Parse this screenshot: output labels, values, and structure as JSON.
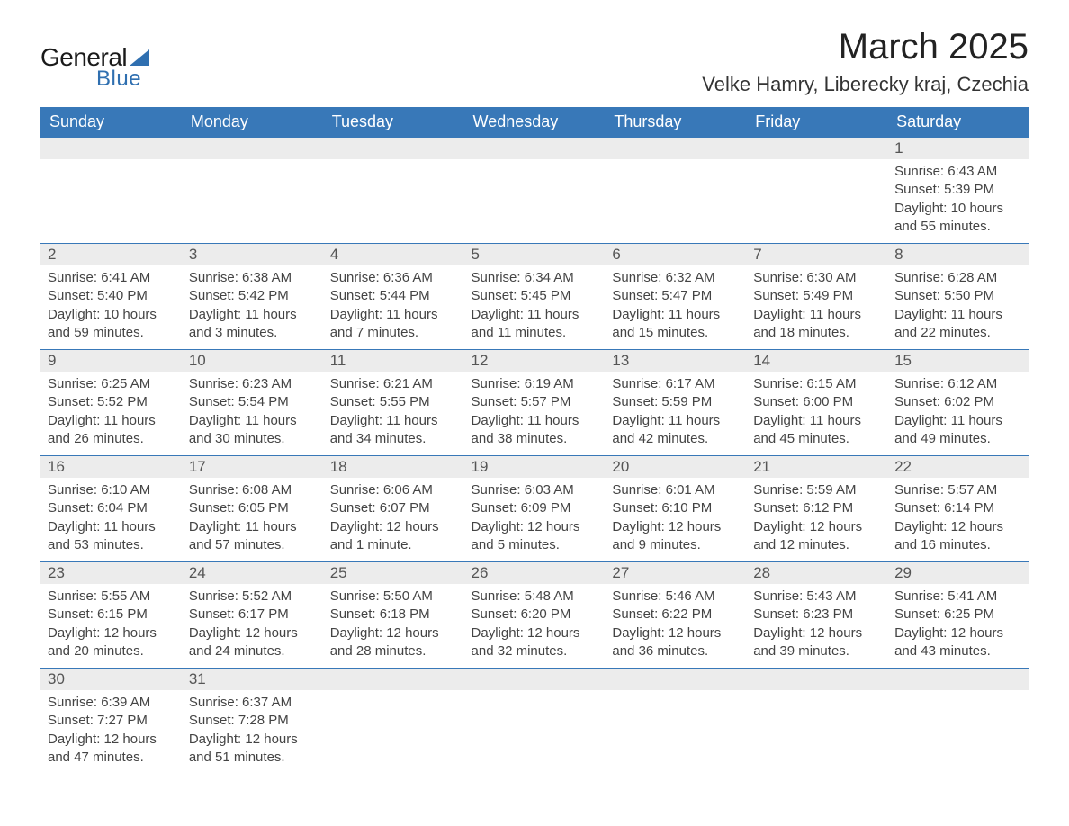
{
  "logo": {
    "general": "General",
    "blue": "Blue",
    "arrow_color": "#2f6fb0"
  },
  "header": {
    "title": "March 2025",
    "location": "Velke Hamry, Liberecky kraj, Czechia"
  },
  "colors": {
    "header_bg": "#3878b8",
    "header_fg": "#ffffff",
    "daynum_bg": "#ececec",
    "daynum_fg": "#555555",
    "text": "#444444",
    "rule": "#3878b8",
    "page_bg": "#ffffff"
  },
  "weekdays": [
    "Sunday",
    "Monday",
    "Tuesday",
    "Wednesday",
    "Thursday",
    "Friday",
    "Saturday"
  ],
  "weeks": [
    [
      null,
      null,
      null,
      null,
      null,
      null,
      {
        "n": "1",
        "sunrise": "6:43 AM",
        "sunset": "5:39 PM",
        "daylight": "10 hours and 55 minutes."
      }
    ],
    [
      {
        "n": "2",
        "sunrise": "6:41 AM",
        "sunset": "5:40 PM",
        "daylight": "10 hours and 59 minutes."
      },
      {
        "n": "3",
        "sunrise": "6:38 AM",
        "sunset": "5:42 PM",
        "daylight": "11 hours and 3 minutes."
      },
      {
        "n": "4",
        "sunrise": "6:36 AM",
        "sunset": "5:44 PM",
        "daylight": "11 hours and 7 minutes."
      },
      {
        "n": "5",
        "sunrise": "6:34 AM",
        "sunset": "5:45 PM",
        "daylight": "11 hours and 11 minutes."
      },
      {
        "n": "6",
        "sunrise": "6:32 AM",
        "sunset": "5:47 PM",
        "daylight": "11 hours and 15 minutes."
      },
      {
        "n": "7",
        "sunrise": "6:30 AM",
        "sunset": "5:49 PM",
        "daylight": "11 hours and 18 minutes."
      },
      {
        "n": "8",
        "sunrise": "6:28 AM",
        "sunset": "5:50 PM",
        "daylight": "11 hours and 22 minutes."
      }
    ],
    [
      {
        "n": "9",
        "sunrise": "6:25 AM",
        "sunset": "5:52 PM",
        "daylight": "11 hours and 26 minutes."
      },
      {
        "n": "10",
        "sunrise": "6:23 AM",
        "sunset": "5:54 PM",
        "daylight": "11 hours and 30 minutes."
      },
      {
        "n": "11",
        "sunrise": "6:21 AM",
        "sunset": "5:55 PM",
        "daylight": "11 hours and 34 minutes."
      },
      {
        "n": "12",
        "sunrise": "6:19 AM",
        "sunset": "5:57 PM",
        "daylight": "11 hours and 38 minutes."
      },
      {
        "n": "13",
        "sunrise": "6:17 AM",
        "sunset": "5:59 PM",
        "daylight": "11 hours and 42 minutes."
      },
      {
        "n": "14",
        "sunrise": "6:15 AM",
        "sunset": "6:00 PM",
        "daylight": "11 hours and 45 minutes."
      },
      {
        "n": "15",
        "sunrise": "6:12 AM",
        "sunset": "6:02 PM",
        "daylight": "11 hours and 49 minutes."
      }
    ],
    [
      {
        "n": "16",
        "sunrise": "6:10 AM",
        "sunset": "6:04 PM",
        "daylight": "11 hours and 53 minutes."
      },
      {
        "n": "17",
        "sunrise": "6:08 AM",
        "sunset": "6:05 PM",
        "daylight": "11 hours and 57 minutes."
      },
      {
        "n": "18",
        "sunrise": "6:06 AM",
        "sunset": "6:07 PM",
        "daylight": "12 hours and 1 minute."
      },
      {
        "n": "19",
        "sunrise": "6:03 AM",
        "sunset": "6:09 PM",
        "daylight": "12 hours and 5 minutes."
      },
      {
        "n": "20",
        "sunrise": "6:01 AM",
        "sunset": "6:10 PM",
        "daylight": "12 hours and 9 minutes."
      },
      {
        "n": "21",
        "sunrise": "5:59 AM",
        "sunset": "6:12 PM",
        "daylight": "12 hours and 12 minutes."
      },
      {
        "n": "22",
        "sunrise": "5:57 AM",
        "sunset": "6:14 PM",
        "daylight": "12 hours and 16 minutes."
      }
    ],
    [
      {
        "n": "23",
        "sunrise": "5:55 AM",
        "sunset": "6:15 PM",
        "daylight": "12 hours and 20 minutes."
      },
      {
        "n": "24",
        "sunrise": "5:52 AM",
        "sunset": "6:17 PM",
        "daylight": "12 hours and 24 minutes."
      },
      {
        "n": "25",
        "sunrise": "5:50 AM",
        "sunset": "6:18 PM",
        "daylight": "12 hours and 28 minutes."
      },
      {
        "n": "26",
        "sunrise": "5:48 AM",
        "sunset": "6:20 PM",
        "daylight": "12 hours and 32 minutes."
      },
      {
        "n": "27",
        "sunrise": "5:46 AM",
        "sunset": "6:22 PM",
        "daylight": "12 hours and 36 minutes."
      },
      {
        "n": "28",
        "sunrise": "5:43 AM",
        "sunset": "6:23 PM",
        "daylight": "12 hours and 39 minutes."
      },
      {
        "n": "29",
        "sunrise": "5:41 AM",
        "sunset": "6:25 PM",
        "daylight": "12 hours and 43 minutes."
      }
    ],
    [
      {
        "n": "30",
        "sunrise": "6:39 AM",
        "sunset": "7:27 PM",
        "daylight": "12 hours and 47 minutes."
      },
      {
        "n": "31",
        "sunrise": "6:37 AM",
        "sunset": "7:28 PM",
        "daylight": "12 hours and 51 minutes."
      },
      null,
      null,
      null,
      null,
      null
    ]
  ],
  "labels": {
    "sunrise": "Sunrise: ",
    "sunset": "Sunset: ",
    "daylight": "Daylight: "
  }
}
